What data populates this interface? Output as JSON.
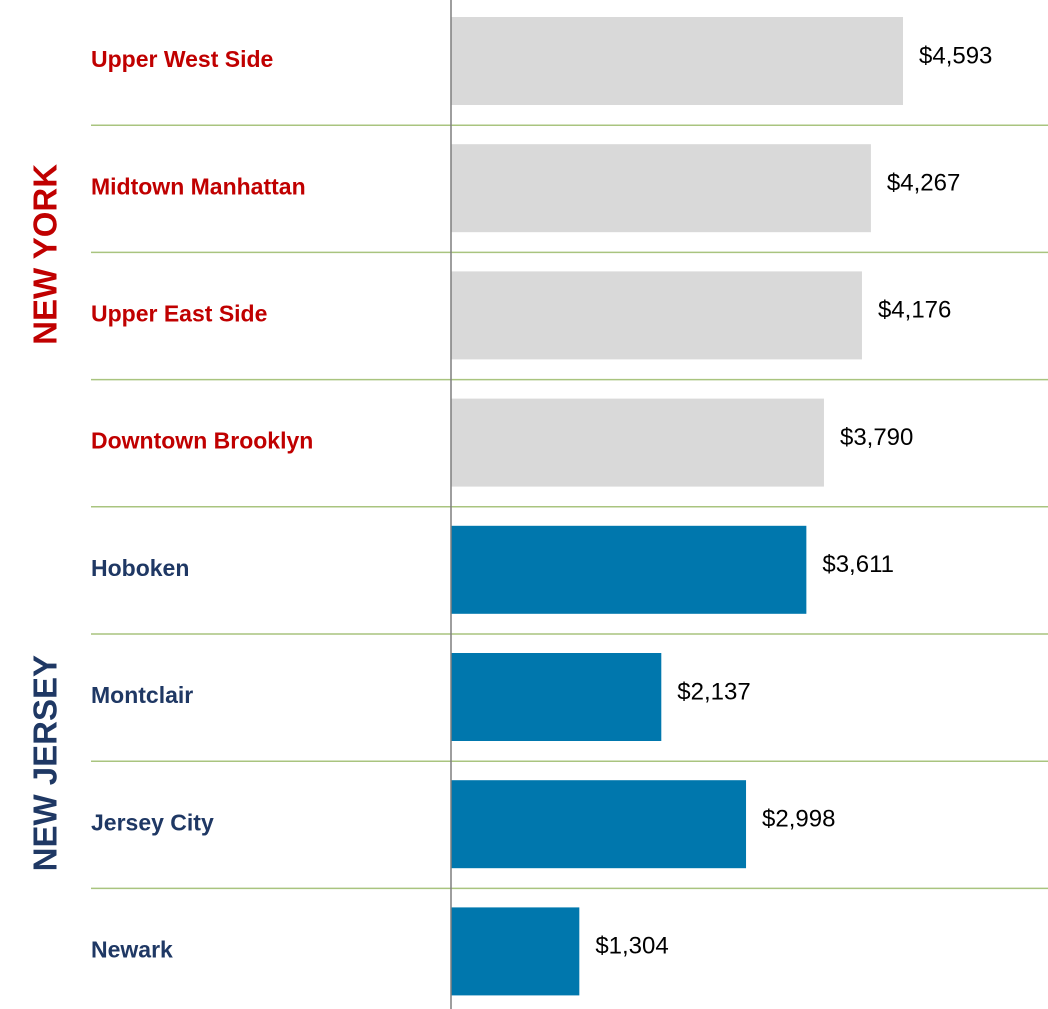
{
  "chart_data": {
    "type": "bar",
    "orientation": "horizontal",
    "series": [
      {
        "name": "NEW YORK",
        "color": "#d9d9d9",
        "label_color": "#c00000",
        "categories": [
          "Upper West Side",
          "Midtown Manhattan",
          "Upper East Side",
          "Downtown Brooklyn"
        ],
        "values": [
          4593,
          4267,
          4176,
          3790
        ],
        "value_labels": [
          "$4,593",
          "$4,267",
          "$4,176",
          "$3,790"
        ]
      },
      {
        "name": "NEW JERSEY",
        "color": "#0077ad",
        "label_color": "#1f3864",
        "categories": [
          "Hoboken",
          "Montclair",
          "Jersey City",
          "Newark"
        ],
        "values": [
          3611,
          2137,
          2998,
          1304
        ],
        "value_labels": [
          "$3,611",
          "$2,137",
          "$2,998",
          "$1,304"
        ]
      }
    ],
    "separator_color": "#a9c47f"
  }
}
